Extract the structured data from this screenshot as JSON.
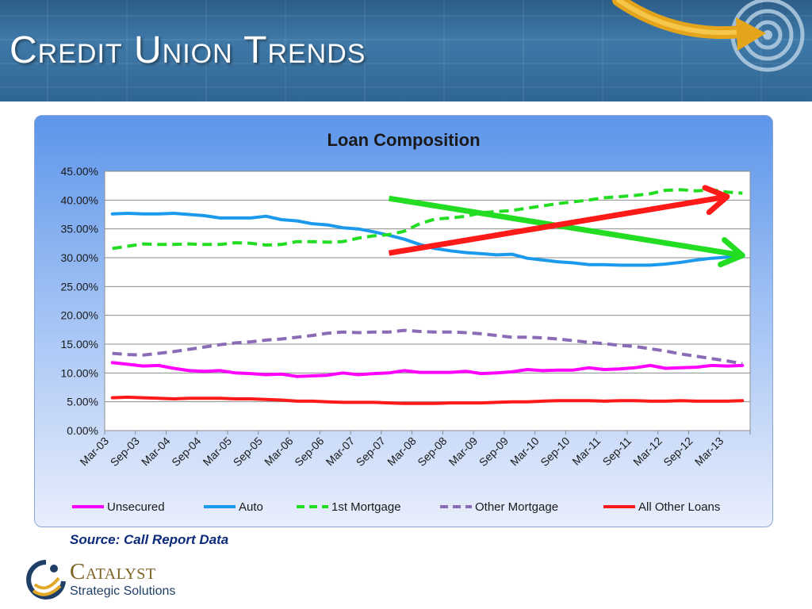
{
  "slide": {
    "title": "Credit Union Trends",
    "source": "Source:  Call Report Data"
  },
  "logo": {
    "name": "Catalyst",
    "tagline": "Strategic Solutions"
  },
  "chart_data": {
    "type": "line",
    "title": "Loan Composition",
    "xlabel": "",
    "ylabel": "",
    "y_axis": {
      "min": 0,
      "max": 45,
      "step": 5,
      "tick_labels": [
        "0.00%",
        "5.00%",
        "10.00%",
        "15.00%",
        "20.00%",
        "25.00%",
        "30.00%",
        "35.00%",
        "40.00%",
        "45.00%"
      ]
    },
    "grid": true,
    "legend_position": "bottom",
    "x_labels": [
      "Mar-03",
      "Sep-03",
      "Mar-04",
      "Sep-04",
      "Mar-05",
      "Sep-05",
      "Mar-06",
      "Sep-06",
      "Mar-07",
      "Sep-07",
      "Mar-08",
      "Sep-08",
      "Mar-09",
      "Sep-09",
      "Mar-10",
      "Sep-10",
      "Mar-11",
      "Sep-11",
      "Mar-12",
      "Sep-12",
      "Mar-13"
    ],
    "x": [
      "Mar-03",
      "Jun-03",
      "Sep-03",
      "Dec-03",
      "Mar-04",
      "Jun-04",
      "Sep-04",
      "Dec-04",
      "Mar-05",
      "Jun-05",
      "Sep-05",
      "Dec-05",
      "Mar-06",
      "Jun-06",
      "Sep-06",
      "Dec-06",
      "Mar-07",
      "Jun-07",
      "Sep-07",
      "Dec-07",
      "Mar-08",
      "Jun-08",
      "Sep-08",
      "Dec-08",
      "Mar-09",
      "Jun-09",
      "Sep-09",
      "Dec-09",
      "Mar-10",
      "Jun-10",
      "Sep-10",
      "Dec-10",
      "Mar-11",
      "Jun-11",
      "Sep-11",
      "Dec-11",
      "Mar-12",
      "Jun-12",
      "Sep-12",
      "Dec-12",
      "Mar-13",
      "Jun-13"
    ],
    "series": [
      {
        "name": "Unsecured",
        "color": "#ff00ff",
        "dash": "solid",
        "values": [
          11.8,
          11.5,
          11.2,
          11.3,
          10.8,
          10.4,
          10.3,
          10.4,
          10.0,
          9.9,
          9.7,
          9.8,
          9.4,
          9.5,
          9.6,
          10.0,
          9.7,
          9.9,
          10.0,
          10.4,
          10.1,
          10.1,
          10.1,
          10.3,
          9.9,
          10.0,
          10.2,
          10.6,
          10.4,
          10.5,
          10.5,
          10.9,
          10.6,
          10.7,
          10.9,
          11.3,
          10.8,
          10.9,
          11.0,
          11.3,
          11.2,
          11.3
        ]
      },
      {
        "name": "Auto",
        "color": "#1b9aed",
        "dash": "solid",
        "values": [
          37.6,
          37.7,
          37.6,
          37.6,
          37.7,
          37.5,
          37.3,
          36.9,
          36.9,
          36.9,
          37.2,
          36.6,
          36.4,
          35.9,
          35.7,
          35.2,
          35.0,
          34.5,
          33.9,
          33.2,
          32.3,
          31.6,
          31.2,
          30.9,
          30.7,
          30.5,
          30.6,
          29.9,
          29.6,
          29.3,
          29.1,
          28.8,
          28.8,
          28.7,
          28.7,
          28.7,
          28.9,
          29.2,
          29.6,
          29.9,
          30.1,
          30.4
        ]
      },
      {
        "name": "1st Mortgage",
        "color": "#22dd22",
        "dash": "dashed",
        "values": [
          31.6,
          32.0,
          32.4,
          32.3,
          32.3,
          32.4,
          32.3,
          32.3,
          32.6,
          32.5,
          32.2,
          32.3,
          32.8,
          32.8,
          32.7,
          32.8,
          33.4,
          33.8,
          34.0,
          34.6,
          35.9,
          36.7,
          36.9,
          37.2,
          37.8,
          38.0,
          38.2,
          38.6,
          39.0,
          39.4,
          39.7,
          40.0,
          40.4,
          40.6,
          40.8,
          41.1,
          41.7,
          41.8,
          41.6,
          41.8,
          41.4,
          41.2
        ]
      },
      {
        "name": "Other Mortgage",
        "color": "#8a6bb5",
        "dash": "dashed",
        "values": [
          13.4,
          13.2,
          13.1,
          13.4,
          13.7,
          14.1,
          14.5,
          14.9,
          15.2,
          15.4,
          15.7,
          15.9,
          16.2,
          16.5,
          16.9,
          17.1,
          17.0,
          17.1,
          17.1,
          17.4,
          17.2,
          17.1,
          17.1,
          17.0,
          16.8,
          16.5,
          16.2,
          16.2,
          16.1,
          15.9,
          15.6,
          15.3,
          15.1,
          14.8,
          14.6,
          14.2,
          13.8,
          13.3,
          12.9,
          12.5,
          12.1,
          11.6
        ]
      },
      {
        "name": "All Other Loans",
        "color": "#ff1a1a",
        "dash": "solid",
        "values": [
          5.7,
          5.8,
          5.7,
          5.6,
          5.5,
          5.6,
          5.6,
          5.6,
          5.5,
          5.5,
          5.4,
          5.3,
          5.1,
          5.1,
          5.0,
          4.9,
          4.9,
          4.9,
          4.8,
          4.7,
          4.7,
          4.7,
          4.8,
          4.8,
          4.8,
          4.9,
          5.0,
          5.0,
          5.1,
          5.2,
          5.2,
          5.2,
          5.1,
          5.2,
          5.2,
          5.1,
          5.1,
          5.2,
          5.1,
          5.1,
          5.1,
          5.2
        ]
      }
    ],
    "annotations": [
      {
        "kind": "trend-arrow",
        "color": "#22dd22",
        "from": [
          "Sep-07",
          40.3
        ],
        "to": [
          "Jun-13",
          30.4
        ]
      },
      {
        "kind": "trend-arrow",
        "color": "#ff1a1a",
        "from": [
          "Sep-07",
          30.8
        ],
        "to": [
          "Mar-13",
          40.6
        ]
      }
    ]
  }
}
